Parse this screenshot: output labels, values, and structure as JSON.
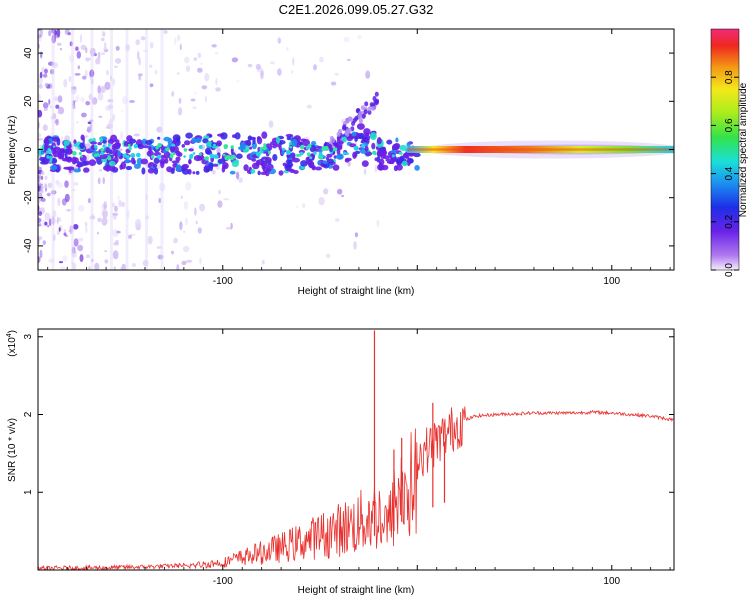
{
  "title": "C2E1.2026.099.05.27.G32",
  "colorbar": {
    "label": "Normalized spectral amplitude",
    "ticks": [
      "0.0",
      "0.2",
      "0.4",
      "0.6",
      "0.8"
    ],
    "tick_values": [
      0.0,
      0.2,
      0.4,
      0.6,
      0.8
    ],
    "range": [
      0,
      1
    ]
  },
  "chart_data": [
    {
      "type": "heatmap",
      "name": "spectrogram",
      "xlabel": "Height of straight line (km)",
      "ylabel": "Frequency (Hz)",
      "xlim": [
        -195,
        132
      ],
      "ylim": [
        -50,
        50
      ],
      "xticks": [
        -100,
        0,
        100
      ],
      "xtick_labels": [
        "-100",
        "",
        "100"
      ],
      "yticks": [
        -40,
        -20,
        0,
        20,
        40
      ],
      "ytick_labels": [
        "-40",
        "-20",
        "0",
        "20",
        "40"
      ],
      "colormap": "rainbow (purple=0 to red=1)",
      "ridge": {
        "description": "Narrow high-amplitude line near 0 Hz from ~0 km to 132 km; scattered broadband blobs below -20 km",
        "center_freq_hz": 0,
        "peak_region_km": [
          0,
          50
        ],
        "scatter_region_km": [
          -195,
          -20
        ]
      }
    },
    {
      "type": "line",
      "name": "snr",
      "xlabel": "Height of straight line (km)",
      "ylabel": "SNR (10 * v/v)",
      "scale_label": "(x10",
      "scale_exponent": "4",
      "xlim": [
        -195,
        132
      ],
      "ylim": [
        0,
        3.1
      ],
      "xticks": [
        -100,
        0,
        100
      ],
      "xtick_labels": [
        "-100",
        "",
        "100"
      ],
      "yticks": [
        1,
        2,
        3
      ],
      "ytick_labels": [
        "1",
        "2",
        "3"
      ],
      "color": "#e8312e",
      "series": [
        {
          "name": "SNR",
          "x": [
            -195,
            -160,
            -140,
            -120,
            -100,
            -90,
            -80,
            -70,
            -60,
            -50,
            -40,
            -30,
            -25,
            -20,
            -15,
            -12,
            -10,
            -5,
            0,
            5,
            10,
            15,
            20,
            25,
            30,
            40,
            50,
            60,
            70,
            80,
            90,
            100,
            110,
            120,
            132
          ],
          "values": [
            0.02,
            0.03,
            0.04,
            0.06,
            0.12,
            0.2,
            0.28,
            0.36,
            0.45,
            0.55,
            0.65,
            0.75,
            0.85,
            0.9,
            0.7,
            1.0,
            1.2,
            1.3,
            1.45,
            1.55,
            1.65,
            1.75,
            1.85,
            1.93,
            1.98,
            2.0,
            2.01,
            2.02,
            2.02,
            2.02,
            2.03,
            2.02,
            2.0,
            1.98,
            1.93
          ],
          "spikes": [
            {
              "x": -22,
              "value": 3.08
            },
            {
              "x": -12,
              "value": 1.55
            },
            {
              "x": -8,
              "value": 1.7
            },
            {
              "x": 8,
              "value": 2.15
            },
            {
              "x": 14,
              "value": 1.65
            }
          ]
        }
      ]
    }
  ]
}
